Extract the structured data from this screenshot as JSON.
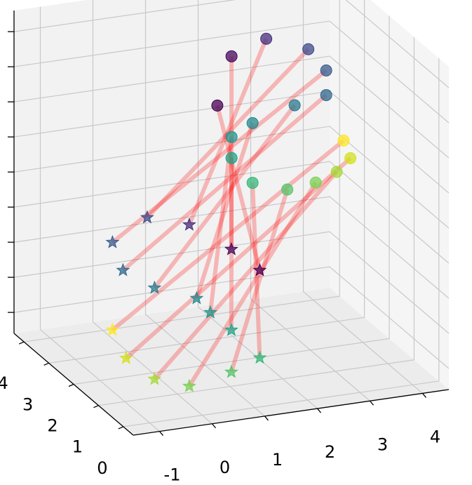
{
  "chart_data": {
    "type": "scatter3d",
    "xlim": [
      -1.5,
      4.5
    ],
    "xticks": [
      -1,
      0,
      1,
      2,
      3,
      4
    ],
    "ylim": [
      -0.4,
      4.4
    ],
    "yticks": [
      0,
      1,
      2,
      3,
      4
    ],
    "zlim": [
      -4,
      4
    ],
    "grid": true,
    "link_color": "#ff0000",
    "points": [
      {
        "marker": "o",
        "x": [
          1.94,
          2.21,
          2.87,
          3.67,
          4.01,
          4.01,
          3.41,
          2.61,
          2.21,
          2.21,
          2.61,
          3.27,
          3.81,
          4.21,
          4.47,
          4.34
        ],
        "y": [
          3.5,
          3.5,
          3.5,
          3.5,
          3.5,
          3.5,
          3.5,
          3.5,
          3.5,
          3.5,
          3.5,
          3.5,
          3.5,
          3.5,
          3.5,
          3.5
        ],
        "z": [
          1.47,
          2.64,
          2.95,
          2.54,
          1.95,
          1.34,
          1.2,
          0.91,
          0.64,
          0.12,
          -0.57,
          -0.86,
          -0.79,
          -0.6,
          -0.31,
          0.15
        ],
        "colors": [
          "#440154",
          "#46085c",
          "#472d7b",
          "#3e4989",
          "#375a8c",
          "#31688e",
          "#2a788e",
          "#23888e",
          "#1f958b",
          "#20a386",
          "#35b779",
          "#54c568",
          "#7ad151",
          "#a5db36",
          "#d2e21b",
          "#fde725"
        ]
      },
      {
        "marker": "*",
        "x": [
          1.33,
          0.79,
          -0.01,
          -0.81,
          -1.47,
          -1.27,
          -0.67,
          0.13,
          0.39,
          0.79,
          1.33,
          0.79,
          -0.01,
          -0.67,
          -1.21,
          -1.47
        ],
        "y": [
          0.5,
          0.5,
          0.5,
          0.5,
          0.5,
          0.5,
          0.5,
          0.5,
          0.5,
          0.5,
          0.5,
          0.5,
          0.5,
          0.5,
          0.5,
          0.5
        ],
        "z": [
          -0.92,
          -0.3,
          0.46,
          0.79,
          0.3,
          -0.43,
          -0.98,
          -1.39,
          -1.79,
          -2.3,
          -3.09,
          -3.34,
          -3.54,
          -3.24,
          -2.62,
          -1.87
        ],
        "colors": [
          "#440154",
          "#46085c",
          "#472d7b",
          "#3e4989",
          "#375a8c",
          "#31688e",
          "#2a788e",
          "#23888e",
          "#1f958b",
          "#20a386",
          "#35b779",
          "#54c568",
          "#7ad151",
          "#a5db36",
          "#d2e21b",
          "#fde725"
        ]
      }
    ]
  }
}
